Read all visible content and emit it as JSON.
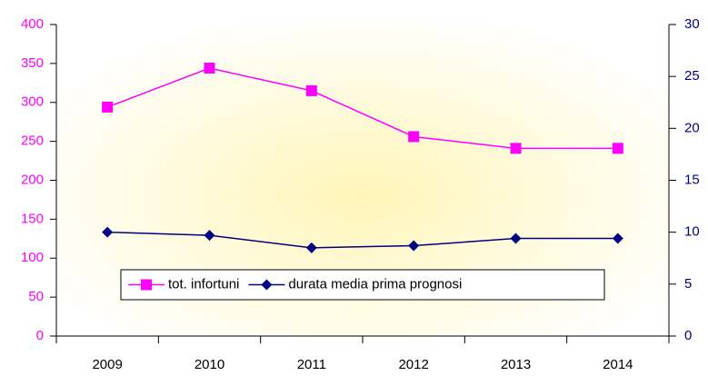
{
  "chart_data": {
    "type": "line",
    "categories": [
      "2009",
      "2010",
      "2011",
      "2012",
      "2013",
      "2014"
    ],
    "series": [
      {
        "name": "tot. infortuni",
        "color": "#ff00ff",
        "marker": "square",
        "values": [
          294,
          344,
          315,
          256,
          241,
          241
        ]
      },
      {
        "name": "durata media prima prognosi",
        "color": "#000080",
        "marker": "diamond",
        "axis": "y2",
        "values": [
          10,
          9.7,
          8.5,
          8.7,
          9.4,
          9.4
        ]
      }
    ],
    "ylim": [
      0,
      400
    ],
    "yticks": [
      0,
      50,
      100,
      150,
      200,
      250,
      300,
      350,
      400
    ],
    "ycolor": "#ff00ff",
    "y2lim": [
      0,
      30
    ],
    "y2ticks": [
      0,
      5,
      10,
      15,
      20,
      25,
      30
    ],
    "y2color": "#000080",
    "grid": false,
    "legend": "bottom"
  }
}
